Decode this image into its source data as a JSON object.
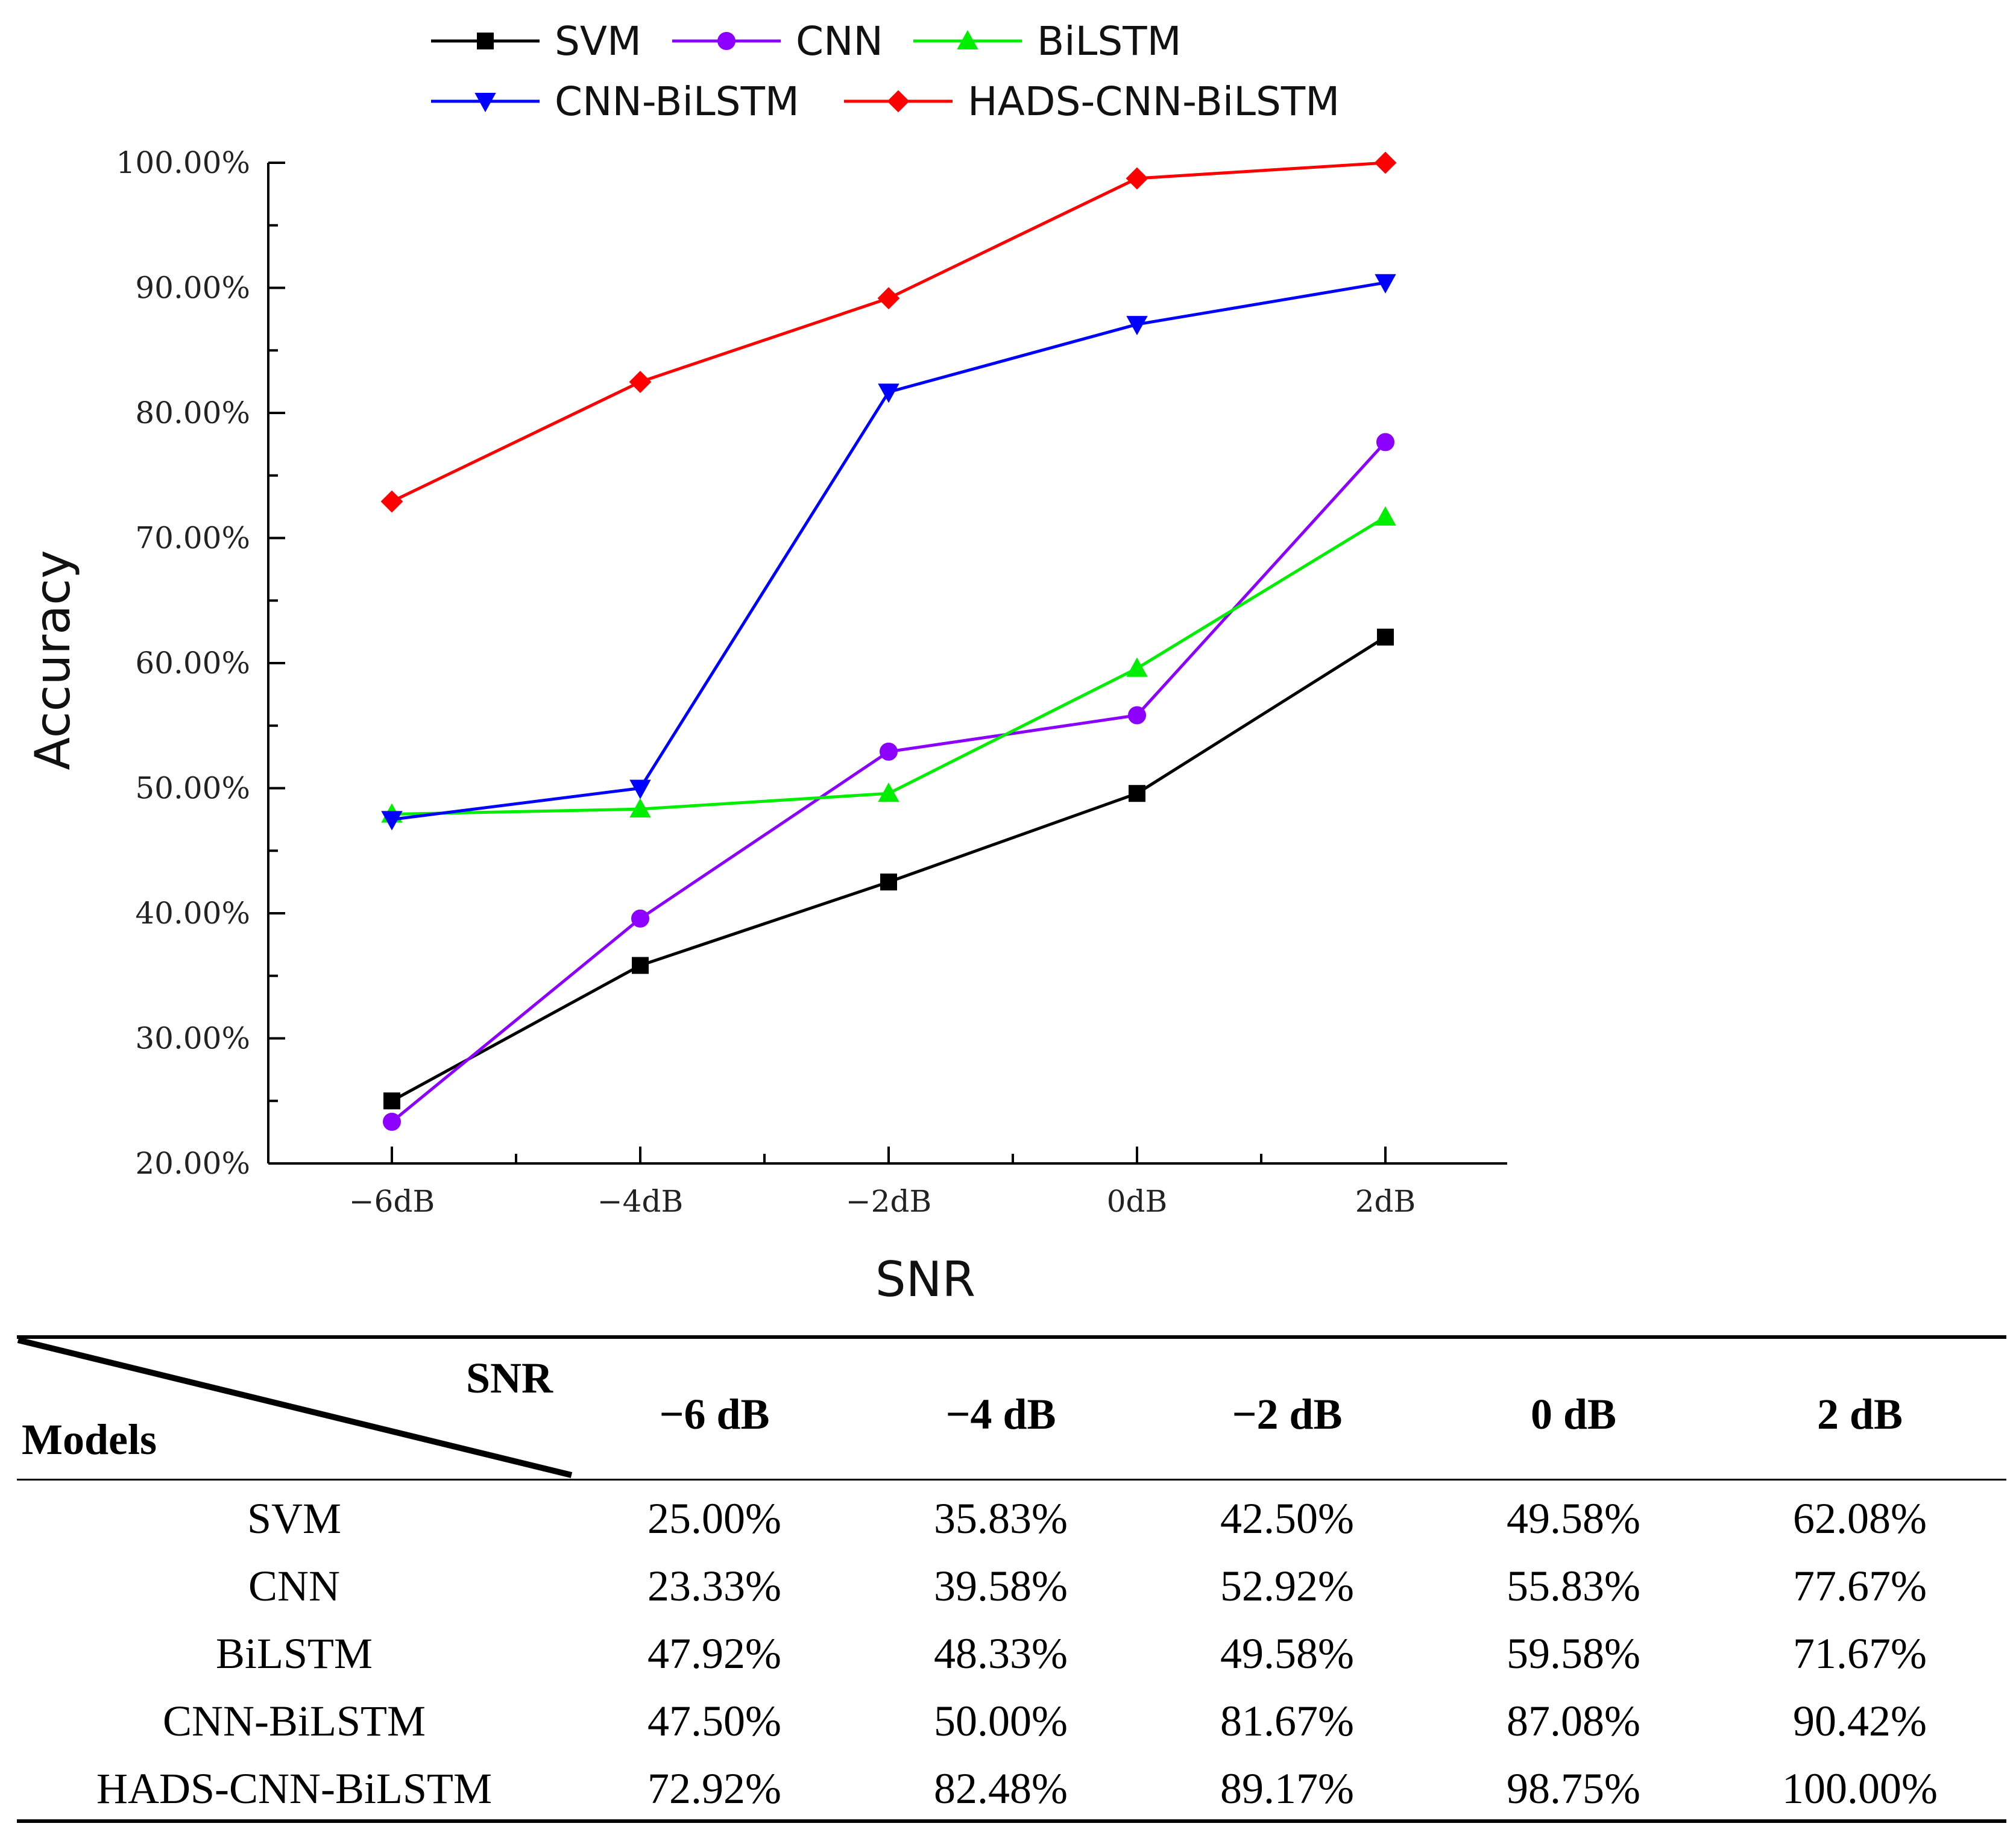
{
  "chart_data": {
    "type": "line",
    "title": "",
    "xlabel": "SNR",
    "ylabel": "Accuracy",
    "categories": [
      "−6dB",
      "−4dB",
      "−2dB",
      "0dB",
      "2dB"
    ],
    "ylim": [
      20,
      100
    ],
    "yticks": [
      "20.00%",
      "30.00%",
      "40.00%",
      "50.00%",
      "60.00%",
      "70.00%",
      "80.00%",
      "90.00%",
      "100.00%"
    ],
    "ytick_values": [
      20,
      30,
      40,
      50,
      60,
      70,
      80,
      90,
      100
    ],
    "legend_position": "top",
    "series": [
      {
        "name": "SVM",
        "color": "#000000",
        "marker": "square",
        "values": [
          25.0,
          35.83,
          42.5,
          49.58,
          62.08
        ]
      },
      {
        "name": "CNN",
        "color": "#8b00ff",
        "marker": "circle",
        "values": [
          23.33,
          39.58,
          52.92,
          55.83,
          77.67
        ]
      },
      {
        "name": "BiLSTM",
        "color": "#00ee00",
        "marker": "triangle-up",
        "values": [
          47.92,
          48.33,
          49.58,
          59.58,
          71.67
        ]
      },
      {
        "name": "CNN-BiLSTM",
        "color": "#0000ff",
        "marker": "triangle-down",
        "values": [
          47.5,
          50.0,
          81.67,
          87.08,
          90.42
        ]
      },
      {
        "name": "HADS-CNN-BiLSTM",
        "color": "#ff0000",
        "marker": "diamond",
        "values": [
          72.92,
          82.48,
          89.17,
          98.75,
          100.0
        ]
      }
    ]
  },
  "table": {
    "corner_top": "SNR",
    "corner_bottom": "Models",
    "columns": [
      "−6 dB",
      "−4 dB",
      "−2 dB",
      "0 dB",
      "2 dB"
    ],
    "rows": [
      {
        "model": "SVM",
        "values": [
          "25.00%",
          "35.83%",
          "42.50%",
          "49.58%",
          "62.08%"
        ]
      },
      {
        "model": "CNN",
        "values": [
          "23.33%",
          "39.58%",
          "52.92%",
          "55.83%",
          "77.67%"
        ]
      },
      {
        "model": "BiLSTM",
        "values": [
          "47.92%",
          "48.33%",
          "49.58%",
          "59.58%",
          "71.67%"
        ]
      },
      {
        "model": "CNN-BiLSTM",
        "values": [
          "47.50%",
          "50.00%",
          "81.67%",
          "87.08%",
          "90.42%"
        ]
      },
      {
        "model": "HADS-CNN-BiLSTM",
        "values": [
          "72.92%",
          "82.48%",
          "89.17%",
          "98.75%",
          "100.00%"
        ]
      }
    ]
  }
}
